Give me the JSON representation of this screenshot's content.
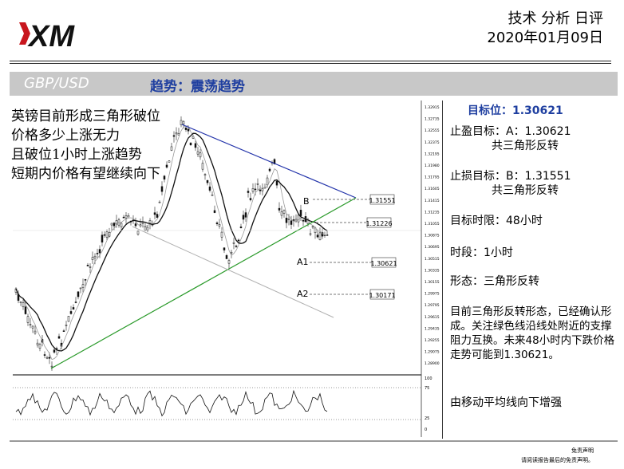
{
  "header": {
    "brand": "XM",
    "report_title": "技术 分析 日评",
    "date": "2020年01月09日"
  },
  "bar": {
    "pair": "GBP/USD",
    "trend": "趋势：震荡趋势"
  },
  "chart": {
    "overlay_lines": [
      "英镑目前形成三角形破位",
      "价格多少上涨无力",
      "且破位1小时上涨趋势",
      "短期内价格有望继续向下"
    ],
    "level_boxes": [
      "1.31551",
      "1.31226",
      "1.30621",
      "1.30171"
    ],
    "labels": {
      "b": "B",
      "a1": "A1",
      "a2": "A2"
    },
    "y_ticks": [
      "1.32915",
      "1.32735",
      "1.32555",
      "1.32375",
      "1.32195",
      "1.31980",
      "1.31795",
      "1.31605",
      "1.31415",
      "1.31235",
      "1.31055",
      "1.30875",
      "1.30695",
      "1.30515",
      "1.30335",
      "1.30155",
      "1.29975",
      "1.29795",
      "1.29615",
      "1.29435",
      "1.29255",
      "1.29075",
      "1.28900"
    ],
    "rsi_ticks": [
      "100",
      "75",
      "25",
      "0"
    ],
    "colors": {
      "candle_up": "#1a1a1a",
      "support_line": "#2a9a2a",
      "resistance_line": "#2233aa",
      "channel_line": "#b0b0b0"
    }
  },
  "side": {
    "target_label": "目标位：1.30621",
    "tp_line1": "止盈目标：A：1.30621",
    "tp_line2": "共三角形反转",
    "sl_line1": "止损目标：B：1.31551",
    "sl_line2": "共三角形反转",
    "time_limit": "目标时限：48小时",
    "timeframe": "时段：1小时",
    "pattern": "形态：三角形反转",
    "analysis": "目前三角形反转形态，已经确认形成。关注绿色线沿线处附近的支撑阻力互换。未来48小时内下跌价格走势可能到1.30621。",
    "ma_note": "由移动平均线向下增强"
  },
  "footer": {
    "disclaimer_title": "免责声明",
    "disclaimer_text": "请阅读报告最后的免责声明。"
  }
}
